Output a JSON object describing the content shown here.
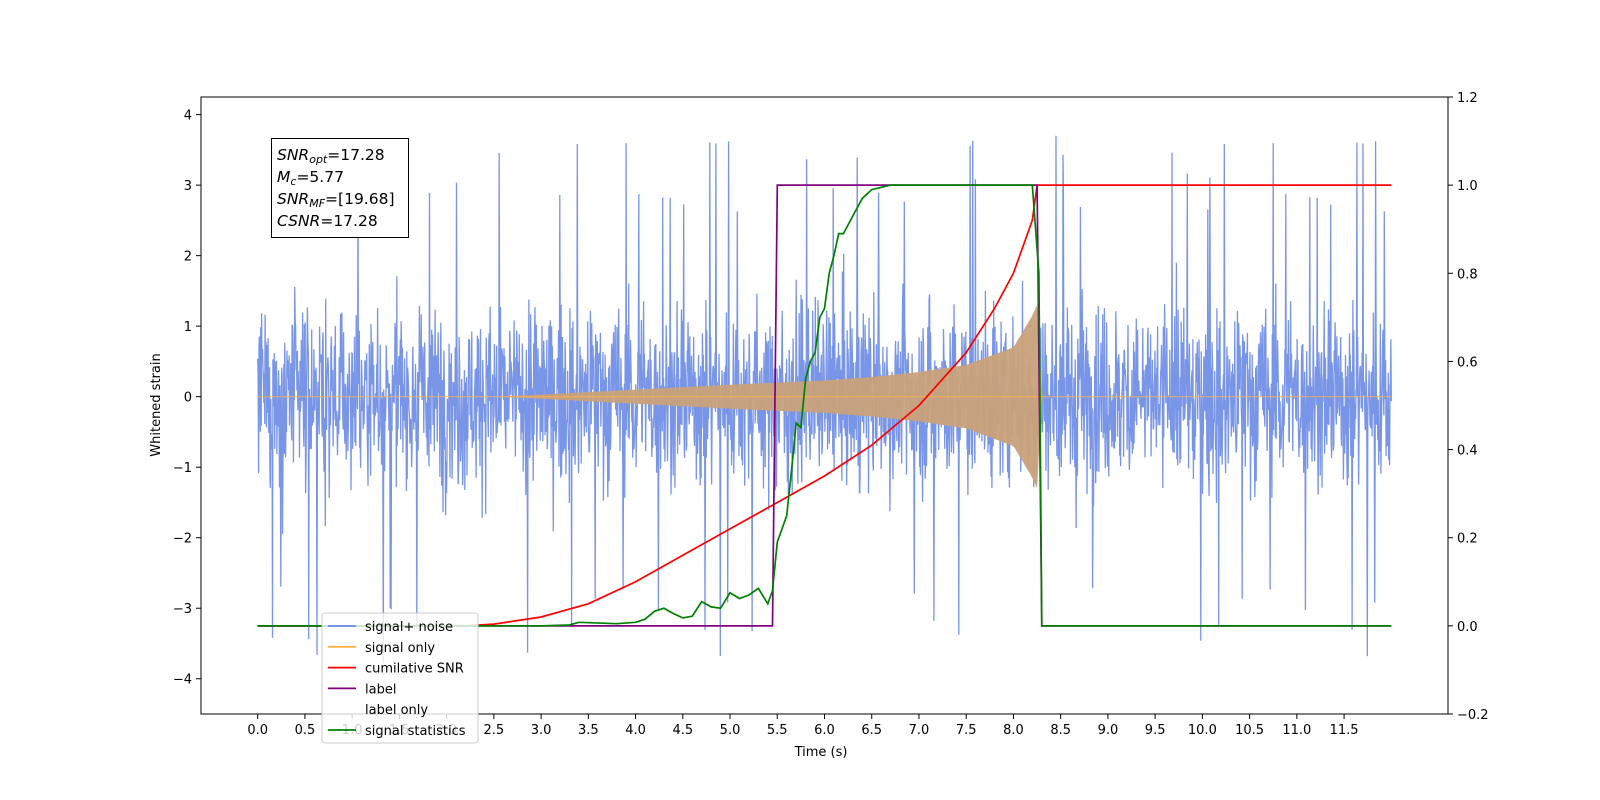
{
  "chart_data": {
    "type": "line",
    "xlabel": "Time (s)",
    "ylabel": "Whitened strain",
    "xlim": [
      -0.6,
      12.6
    ],
    "ylim_left": [
      -4.5,
      4.25
    ],
    "ylim_right": [
      -0.2,
      1.2
    ],
    "x_ticks": [
      "0.0",
      "0.5",
      "1.0",
      "1.5",
      "2.0",
      "2.5",
      "3.0",
      "3.5",
      "4.0",
      "4.5",
      "5.0",
      "5.5",
      "6.0",
      "6.5",
      "7.0",
      "7.5",
      "8.0",
      "8.5",
      "9.0",
      "9.5",
      "10.0",
      "10.5",
      "11.0",
      "11.5"
    ],
    "y_ticks_left": [
      "4",
      "3",
      "2",
      "1",
      "0",
      "−1",
      "−2",
      "−3",
      "−4"
    ],
    "y_ticks_right": [
      "1.2",
      "1.0",
      "0.8",
      "0.6",
      "0.4",
      "0.2",
      "0.0",
      "−0.2"
    ],
    "legend_position": "lower left",
    "legend": [
      "signal+ noise",
      "signal only",
      "cumilative SNR",
      "label",
      "label only",
      "signal statistics"
    ],
    "series": [
      {
        "name": "signal+ noise",
        "axis": "left",
        "color": "#6a8ae6",
        "description_values": {
          "x_range": [
            0.0,
            12.0
          ],
          "typical_amplitude": 1.3,
          "peak_max": 3.88,
          "peak_min": -4.12
        }
      },
      {
        "name": "signal only",
        "axis": "left",
        "color": "#ffb347",
        "envelope_x": [
          0.0,
          2.5,
          3.0,
          4.0,
          5.0,
          5.5,
          6.0,
          6.5,
          7.0,
          7.5,
          8.0,
          8.2,
          8.25,
          8.3,
          12.0
        ],
        "envelope_y": [
          0.0,
          0.0,
          0.03,
          0.1,
          0.17,
          0.2,
          0.23,
          0.28,
          0.35,
          0.45,
          0.7,
          1.15,
          1.3,
          0.0,
          0.0
        ]
      },
      {
        "name": "cumilative SNR",
        "axis": "right",
        "color": "#ff0000",
        "x": [
          0.0,
          2.2,
          2.5,
          3.0,
          3.5,
          4.0,
          4.5,
          5.0,
          5.5,
          6.0,
          6.5,
          7.0,
          7.5,
          7.8,
          8.0,
          8.2,
          8.25,
          8.3,
          12.0
        ],
        "y": [
          0.0,
          0.0,
          0.004,
          0.02,
          0.05,
          0.1,
          0.16,
          0.22,
          0.28,
          0.34,
          0.41,
          0.5,
          0.62,
          0.72,
          0.8,
          0.92,
          1.0,
          1.0,
          1.0
        ]
      },
      {
        "name": "label",
        "axis": "right",
        "color": "#800080",
        "x": [
          0.0,
          5.45,
          5.5,
          8.25,
          8.3,
          12.0
        ],
        "y": [
          0.0,
          0.0,
          1.0,
          1.0,
          0.0,
          0.0
        ]
      },
      {
        "name": "signal statistics",
        "axis": "right",
        "color": "#008000",
        "x": [
          0.0,
          3.0,
          3.3,
          3.4,
          3.8,
          4.0,
          4.1,
          4.2,
          4.3,
          4.4,
          4.5,
          4.6,
          4.7,
          4.8,
          4.9,
          5.0,
          5.1,
          5.2,
          5.3,
          5.4,
          5.45,
          5.5,
          5.55,
          5.6,
          5.65,
          5.7,
          5.75,
          5.8,
          5.85,
          5.9,
          5.95,
          6.0,
          6.05,
          6.1,
          6.15,
          6.2,
          6.3,
          6.4,
          6.5,
          6.7,
          7.0,
          8.2,
          8.27,
          8.3,
          12.0
        ],
        "y": [
          0.0,
          0.0,
          0.002,
          0.008,
          0.005,
          0.008,
          0.015,
          0.033,
          0.04,
          0.028,
          0.018,
          0.022,
          0.055,
          0.043,
          0.04,
          0.075,
          0.062,
          0.07,
          0.085,
          0.05,
          0.08,
          0.19,
          0.22,
          0.25,
          0.35,
          0.46,
          0.45,
          0.56,
          0.6,
          0.62,
          0.7,
          0.72,
          0.8,
          0.84,
          0.89,
          0.89,
          0.93,
          0.97,
          0.99,
          1.0,
          1.0,
          1.0,
          0.8,
          0.0,
          0.0
        ]
      }
    ]
  },
  "annotation": {
    "snr_opt_base": "SNR",
    "snr_opt_sub": "opt",
    "snr_opt_val": "=17.28",
    "mc_base": "M",
    "mc_sub": "c",
    "mc_val": "=5.77",
    "snr_mf_base": "SNR",
    "snr_mf_sub": "MF",
    "snr_mf_val": "=[19.68]",
    "csnr_base": "CSNR",
    "csnr_val": "=17.28"
  }
}
